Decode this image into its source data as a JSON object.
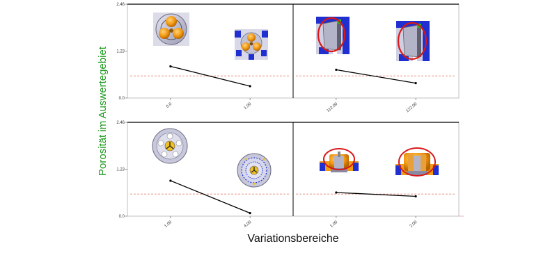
{
  "chart_data": {
    "type": "line",
    "ylabel": "Porosität im Auswertegebiet",
    "xlabel": "Variationsbereiche",
    "ylim": [
      0,
      2.46
    ],
    "y_ticks": [
      "0.0",
      "1.23",
      "2.46"
    ],
    "reference_value": 0.58,
    "grid": false,
    "legend": "none",
    "panels": [
      {
        "x": [
          "0.0",
          "1.00"
        ],
        "values": [
          0.83,
          0.31
        ]
      },
      {
        "x": [
          "112.00",
          "122.00"
        ],
        "values": [
          0.74,
          0.39
        ]
      },
      {
        "x": [
          "1.00",
          "4.00"
        ],
        "values": [
          0.93,
          0.08
        ]
      },
      {
        "x": [
          "1.00",
          "2.00"
        ],
        "values": [
          0.62,
          0.52
        ]
      }
    ]
  },
  "colors": {
    "ylabel": "#1f9a1f",
    "line": "#000000",
    "reference": "#e8806a",
    "frame": "#000000",
    "highlight": "#d81818"
  },
  "thumbnails": [
    "wheel-hub-orange-top-view",
    "wheel-hub-orange-blue-top-view",
    "cylinder-section-red-circle",
    "cylinder-section-red-circle",
    "wheel-rim-front-view",
    "wheel-rim-blue-front-view",
    "component-side-view-red-ellipse",
    "component-side-view-red-ellipse"
  ]
}
